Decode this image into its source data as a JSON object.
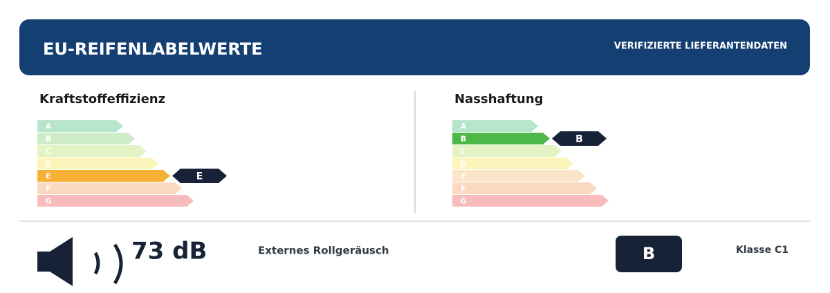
{
  "header": {
    "title": "EU-REIFENLABELWERTE",
    "badge": "VERIFIZIERTE LIEFERANTENDATEN"
  },
  "fuel_efficiency": {
    "title": "Kraftstoffeffizienz",
    "classes": [
      "A",
      "B",
      "C",
      "D",
      "E",
      "F",
      "G"
    ],
    "rating": "E"
  },
  "wet_grip": {
    "title": "Nasshaftung",
    "classes": [
      "A",
      "B",
      "C",
      "D",
      "E",
      "F",
      "G"
    ],
    "rating": "B"
  },
  "noise": {
    "value": "73 dB",
    "label": "Externes Rollgeräusch",
    "class": "B",
    "tire_class": "Klasse C1"
  }
}
